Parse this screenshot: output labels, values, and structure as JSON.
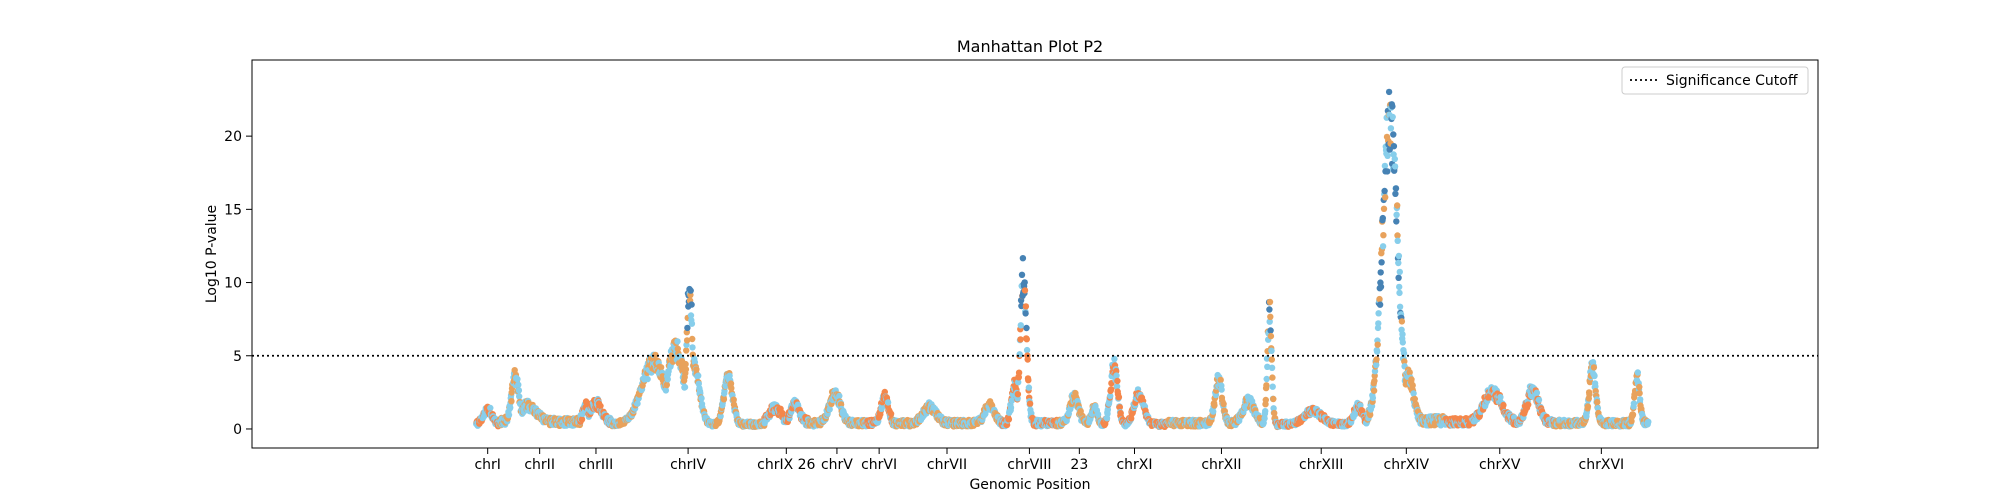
{
  "chart_data": {
    "type": "scatter",
    "title": "Manhattan Plot P2",
    "xlabel": "Genomic Position",
    "ylabel": "Log10 P-value",
    "ylim": [
      -1.3,
      25.2
    ],
    "y_ticks": [
      0,
      5,
      10,
      15,
      20
    ],
    "grid": false,
    "legend": {
      "placement": "top-right",
      "entries": [
        {
          "label": "Significance Cutoff",
          "style": "dotted",
          "color": "#000000"
        }
      ]
    },
    "significance_cutoff": 5,
    "colors": {
      "blue_light": "#87ceeb",
      "blue_dark": "#4682b4",
      "orange": "#f4874b",
      "sand": "#e8a25c"
    },
    "chromosomes": [
      {
        "label": "chrI",
        "start": 0,
        "end": 230,
        "base": 0.4,
        "peaks": [
          [
            115,
            1.1,
            60
          ]
        ]
      },
      {
        "label": "chrII",
        "start": 230,
        "end": 1043,
        "base": 0.6,
        "peaks": [
          [
            390,
            3.4,
            50
          ],
          [
            520,
            1.2,
            120
          ]
        ]
      },
      {
        "label": "chrIII",
        "start": 1043,
        "end": 1360,
        "base": 0.6,
        "peaks": [
          [
            1200,
            1.4,
            80
          ],
          [
            1100,
            1.2,
            40
          ]
        ]
      },
      {
        "label": "chrIV",
        "start": 1360,
        "end": 2892,
        "base": 0.4,
        "peaks": [
          [
            1780,
            4.5,
            170
          ],
          [
            2000,
            5.6,
            120
          ],
          [
            2140,
            10.3,
            40
          ],
          [
            2180,
            4.4,
            80
          ],
          [
            2530,
            3.6,
            60
          ]
        ]
      },
      {
        "label": "chrIX 26",
        "start": 2892,
        "end": 3331,
        "base": 0.6,
        "peaks": [
          [
            3200,
            1.4,
            60
          ],
          [
            3000,
            1.0,
            80
          ]
        ]
      },
      {
        "label": "chrV",
        "start": 3331,
        "end": 3908,
        "base": 0.5,
        "peaks": [
          [
            3600,
            2.1,
            80
          ]
        ]
      },
      {
        "label": "chrVI",
        "start": 3908,
        "end": 4178,
        "base": 0.5,
        "peaks": [
          [
            4100,
            2.0,
            50
          ]
        ]
      },
      {
        "label": "chrVII",
        "start": 4178,
        "end": 5270,
        "base": 0.5,
        "peaks": [
          [
            4550,
            1.2,
            90
          ],
          [
            5150,
            1.3,
            70
          ]
        ]
      },
      {
        "label": "chrVIII",
        "start": 5270,
        "end": 5832,
        "base": 0.5,
        "peaks": [
          [
            5490,
            10.8,
            45
          ],
          [
            5400,
            3.0,
            40
          ]
        ]
      },
      {
        "label": "23",
        "start": 5832,
        "end": 6272,
        "base": 0.5,
        "peaks": [
          [
            6000,
            2.0,
            60
          ],
          [
            6200,
            1.2,
            40
          ]
        ]
      },
      {
        "label": "chrXI",
        "start": 6272,
        "end": 6939,
        "base": 0.4,
        "peaks": [
          [
            6400,
            4.3,
            50
          ],
          [
            6650,
            2.2,
            70
          ]
        ]
      },
      {
        "label": "chrXII",
        "start": 6939,
        "end": 8017,
        "base": 0.5,
        "peaks": [
          [
            7450,
            3.2,
            50
          ],
          [
            7750,
            1.6,
            80
          ],
          [
            7960,
            8.1,
            30
          ]
        ]
      },
      {
        "label": "chrXIII",
        "start": 8017,
        "end": 8941,
        "base": 0.4,
        "peaks": [
          [
            8400,
            1.0,
            120
          ],
          [
            8850,
            1.3,
            60
          ]
        ]
      },
      {
        "label": "chrXIV",
        "start": 8941,
        "end": 9725,
        "base": 0.7,
        "peaks": [
          [
            9170,
            22.0,
            110
          ],
          [
            9350,
            3.5,
            70
          ]
        ]
      },
      {
        "label": "chrXV",
        "start": 9725,
        "end": 10816,
        "base": 0.6,
        "peaks": [
          [
            10200,
            2.2,
            120
          ],
          [
            10600,
            2.4,
            80
          ]
        ]
      },
      {
        "label": "chrXVI",
        "start": 10816,
        "end": 11764,
        "base": 0.5,
        "peaks": [
          [
            11200,
            4.2,
            45
          ],
          [
            11650,
            3.5,
            35
          ]
        ]
      }
    ]
  }
}
